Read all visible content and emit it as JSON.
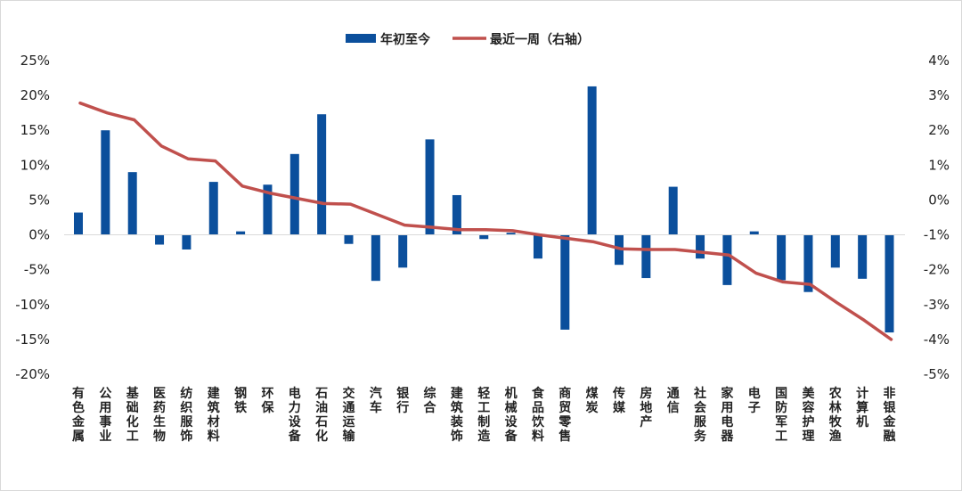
{
  "chart_data": {
    "type": "bar",
    "categories": [
      "有色金属",
      "公用事业",
      "基础化工",
      "医药生物",
      "纺织服饰",
      "建筑材料",
      "钢铁",
      "环保",
      "电力设备",
      "石油石化",
      "交通运输",
      "汽车",
      "银行",
      "综合",
      "建筑装饰",
      "轻工制造",
      "机械设备",
      "食品饮料",
      "商贸零售",
      "煤炭",
      "传媒",
      "房地产",
      "通信",
      "社会服务",
      "家用电器",
      "电子",
      "国防军工",
      "美容护理",
      "农林牧渔",
      "计算机",
      "非银金融"
    ],
    "series": [
      {
        "name": "年初至今",
        "type": "bar",
        "axis": "left",
        "color": "#0b4f9c",
        "values": [
          3.2,
          15.0,
          9.0,
          -1.4,
          -2.1,
          7.6,
          0.5,
          7.2,
          11.6,
          17.3,
          -1.3,
          -6.6,
          -4.7,
          13.7,
          5.7,
          -0.6,
          0.3,
          -3.4,
          -13.6,
          21.3,
          -4.3,
          -6.2,
          6.9,
          -3.4,
          -7.2,
          0.5,
          -6.5,
          -8.2,
          -4.7,
          -6.3,
          -14.0
        ]
      },
      {
        "name": "最近一周（右轴）",
        "type": "line",
        "axis": "right",
        "color": "#c0504d",
        "values": [
          2.78,
          2.5,
          2.3,
          1.55,
          1.18,
          1.12,
          0.4,
          0.2,
          0.05,
          -0.1,
          -0.12,
          -0.42,
          -0.72,
          -0.78,
          -0.85,
          -0.85,
          -0.88,
          -1.0,
          -1.1,
          -1.2,
          -1.4,
          -1.42,
          -1.42,
          -1.5,
          -1.58,
          -2.1,
          -2.35,
          -2.42,
          -2.95,
          -3.45,
          -4.0
        ]
      }
    ],
    "left_axis": {
      "min": -20,
      "max": 25,
      "step": 5,
      "format": "percent",
      "ticks": [
        "25%",
        "20%",
        "15%",
        "10%",
        "5%",
        "0%",
        "-5%",
        "-10%",
        "-15%",
        "-20%"
      ]
    },
    "right_axis": {
      "min": -5,
      "max": 4,
      "step": 1,
      "format": "percent",
      "ticks": [
        "4%",
        "3%",
        "2%",
        "1%",
        "0%",
        "-1%",
        "-2%",
        "-3%",
        "-4%",
        "-5%"
      ]
    },
    "legend": {
      "position": "top-center"
    },
    "grid": false
  }
}
